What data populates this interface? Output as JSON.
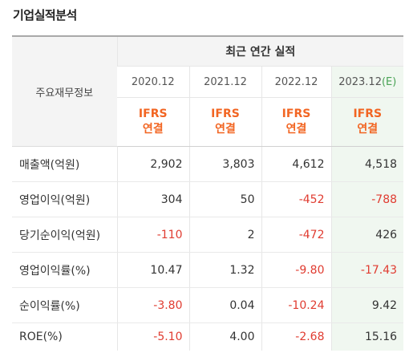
{
  "section": {
    "title": "기업실적분석"
  },
  "table": {
    "row_header_label": "주요재무정보",
    "group_label": "최근 연간 실적",
    "years": [
      {
        "label": "2020.12",
        "est": ""
      },
      {
        "label": "2021.12",
        "est": ""
      },
      {
        "label": "2022.12",
        "est": ""
      },
      {
        "label": "2023.12",
        "est": "(E)"
      }
    ],
    "ifrs": {
      "line1": "IFRS",
      "line2": "연결"
    },
    "rows": [
      {
        "label": "매출액(억원)",
        "values": [
          "2,902",
          "3,803",
          "4,612",
          "4,518"
        ]
      },
      {
        "label": "영업이익(억원)",
        "values": [
          "304",
          "50",
          "-452",
          "-788"
        ]
      },
      {
        "label": "당기순이익(억원)",
        "values": [
          "-110",
          "2",
          "-472",
          "426"
        ]
      },
      {
        "label": "영업이익률(%)",
        "values": [
          "10.47",
          "1.32",
          "-9.80",
          "-17.43"
        ]
      },
      {
        "label": "순이익률(%)",
        "values": [
          "-3.80",
          "0.04",
          "-10.24",
          "9.42"
        ]
      },
      {
        "label": "ROE(%)",
        "values": [
          "-5.10",
          "4.00",
          "-2.68",
          "15.16"
        ]
      }
    ]
  },
  "colors": {
    "negative": "#e03c31",
    "ifrs": "#f26522",
    "estimate_bg": "#f0f7f0",
    "estimate_mark": "#4aa356"
  }
}
